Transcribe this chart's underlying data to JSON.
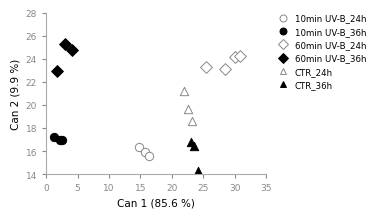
{
  "title": "",
  "xlabel": "Can 1 (85.6 %)",
  "ylabel": "Can 2 (9.9 %)",
  "xlim": [
    0,
    35
  ],
  "ylim": [
    14,
    28
  ],
  "xticks": [
    0,
    5,
    10,
    15,
    20,
    25,
    30,
    35
  ],
  "yticks": [
    14,
    16,
    18,
    20,
    22,
    24,
    26,
    28
  ],
  "series": [
    {
      "label": "10min UV-B_24h",
      "marker": "o",
      "facecolor": "white",
      "edgecolor": "#888888",
      "x": [
        14.8,
        15.8,
        16.3
      ],
      "y": [
        16.4,
        15.9,
        15.6
      ]
    },
    {
      "label": "10min UV-B_36h",
      "marker": "o",
      "facecolor": "black",
      "edgecolor": "black",
      "x": [
        1.3,
        2.2,
        2.6
      ],
      "y": [
        17.2,
        17.0,
        17.0
      ]
    },
    {
      "label": "60min UV-B_24h",
      "marker": "D",
      "facecolor": "white",
      "edgecolor": "#888888",
      "x": [
        25.5,
        28.5,
        30.0,
        30.8
      ],
      "y": [
        23.3,
        23.1,
        24.2,
        24.3
      ]
    },
    {
      "label": "60min UV-B_36h",
      "marker": "D",
      "facecolor": "black",
      "edgecolor": "black",
      "x": [
        1.8,
        3.0,
        4.2
      ],
      "y": [
        23.0,
        25.3,
        24.8
      ]
    },
    {
      "label": "CTR_24h",
      "marker": "^",
      "facecolor": "white",
      "edgecolor": "#888888",
      "x": [
        22.0,
        22.5,
        23.2
      ],
      "y": [
        21.2,
        19.7,
        18.6
      ]
    },
    {
      "label": "CTR_36h",
      "marker": "^",
      "facecolor": "black",
      "edgecolor": "black",
      "x": [
        23.0,
        23.5,
        24.2
      ],
      "y": [
        16.8,
        16.5,
        14.3
      ]
    }
  ],
  "markersize": 6,
  "legend_fontsize": 6.2,
  "axis_fontsize": 7.5,
  "tick_fontsize": 6.5
}
